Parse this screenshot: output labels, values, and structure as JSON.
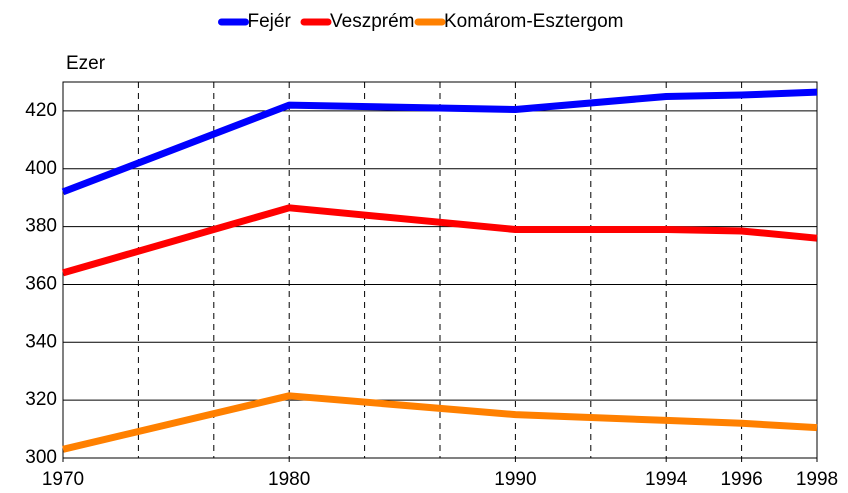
{
  "chart_data": {
    "type": "line",
    "y_label": "Ezer",
    "categories": [
      "1970",
      "1980",
      "1990",
      "1994",
      "1996",
      "1998"
    ],
    "series": [
      {
        "name": "Fejér",
        "color": "#0000ff",
        "values": [
          392,
          422,
          420.5,
          425,
          425.5,
          426.5
        ]
      },
      {
        "name": "Veszprém",
        "color": "#ff0000",
        "values": [
          364,
          386.5,
          379,
          379,
          378.5,
          376
        ]
      },
      {
        "name": "Komárom-Esztergom",
        "color": "#ff8000",
        "values": [
          303,
          321.5,
          315,
          313,
          312,
          310.5
        ]
      }
    ],
    "ylim": [
      300,
      430
    ],
    "yticks": [
      300,
      320,
      340,
      360,
      380,
      400,
      420
    ],
    "grid": true,
    "legend": "top"
  }
}
